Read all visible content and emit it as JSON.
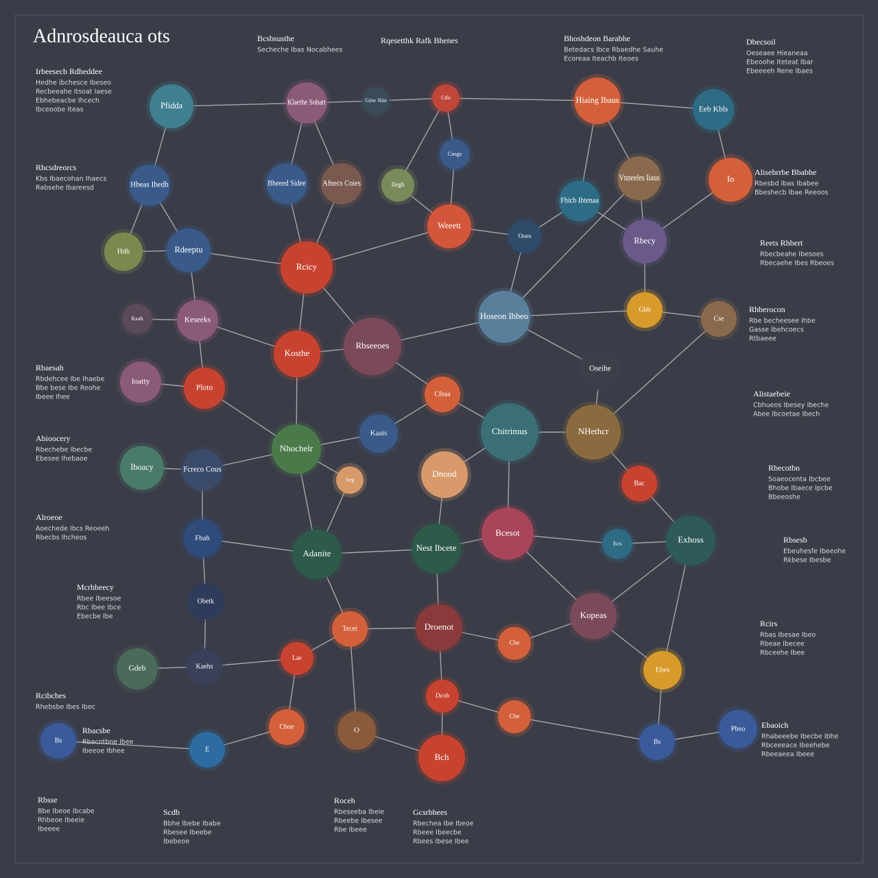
{
  "header": {
    "title": "Adnrosdeauca ots"
  },
  "nodes": [
    {
      "label": "Pfidda"
    },
    {
      "label": "Klaethe Sohatt"
    },
    {
      "label": "Gtiw Nite"
    },
    {
      "label": "Ctlo"
    },
    {
      "label": "Hiaing Ibaus"
    },
    {
      "label": "Eeb Kbls"
    },
    {
      "label": "Hbeas Ibedh"
    },
    {
      "label": "Bheeed Sidee"
    },
    {
      "label": "Afnecs Coies"
    },
    {
      "label": "Ilegh"
    },
    {
      "label": "Cnsgs"
    },
    {
      "label": "Fhicb Ibtenaa"
    },
    {
      "label": "Vnneeles Iiaus"
    },
    {
      "label": "Io"
    },
    {
      "label": "Hdh"
    },
    {
      "label": "Rdeeptu"
    },
    {
      "label": "Weeett"
    },
    {
      "label": "Ooes"
    },
    {
      "label": "Rbecy"
    },
    {
      "label": "Rcicy"
    },
    {
      "label": "Ksah"
    },
    {
      "label": "Keseeks"
    },
    {
      "label": "Kosthe"
    },
    {
      "label": "Rbseeoes"
    },
    {
      "label": "Hoseon Ihbeo"
    },
    {
      "label": "Gbb"
    },
    {
      "label": "Cse"
    },
    {
      "label": "Ioatty"
    },
    {
      "label": "Ploto"
    },
    {
      "label": "Cfeaa"
    },
    {
      "label": "Oseihe"
    },
    {
      "label": "Kaais"
    },
    {
      "label": "Cbitrimus"
    },
    {
      "label": "NHethcr"
    },
    {
      "label": "Nhochelr"
    },
    {
      "label": "Iboacy"
    },
    {
      "label": "Fcreco Cous"
    },
    {
      "label": "Dnood"
    },
    {
      "label": "Aep"
    },
    {
      "label": "Bac"
    },
    {
      "label": "Fbah"
    },
    {
      "label": "Adanite"
    },
    {
      "label": "Nest Ibcete"
    },
    {
      "label": "Bcesot"
    },
    {
      "label": "Exhoss"
    },
    {
      "label": "Ecs"
    },
    {
      "label": "Obetk"
    },
    {
      "label": "Droenot"
    },
    {
      "label": "Tecet"
    },
    {
      "label": "Kopeas"
    },
    {
      "label": "Cbe"
    },
    {
      "label": "Lae"
    },
    {
      "label": "Kaehs"
    },
    {
      "label": "Gdeb"
    },
    {
      "label": "Ebes"
    },
    {
      "label": "Dcob"
    },
    {
      "label": "Cboe"
    },
    {
      "label": "O"
    },
    {
      "label": "Cbe"
    },
    {
      "label": "E"
    },
    {
      "label": "Bch"
    },
    {
      "label": "Bs"
    },
    {
      "label": "Bs"
    },
    {
      "label": "Pbso"
    }
  ],
  "notes": [
    {
      "title": "Bcsbsusthe",
      "lines": [
        "Secheche Ibas Nocabhees"
      ]
    },
    {
      "title": "Rqesetthk Rafk Bhenes",
      "lines": []
    },
    {
      "title": "Bhoshdeon Barabhe",
      "lines": [
        "Betedacs Ibce Rbaedhe Sauhe",
        "Ecoreaa Iteachb Iteoes"
      ]
    },
    {
      "title": "Dbecsoil",
      "lines": [
        "Oeseaee Hieaneaa",
        "Ebeoohe Iteteat Ibar",
        "Ebeeeeh Rene Ibaes"
      ]
    },
    {
      "title": "Irbeesecb Rdheddee",
      "lines": [
        "Hedhe ibchesce Ibeseo",
        "Recbeeahe Itsoat Iaese",
        "Ebhebeacbe Ihcech",
        "Ibceoobe Iteas"
      ]
    },
    {
      "title": "Rhcsdreorcs",
      "lines": [
        "Kbs Ibaecohan Ihaecs",
        "Rabsehe Ibareesd"
      ]
    },
    {
      "title": "Alisehrrbe Bbabhe",
      "lines": [
        "Rbesbd Ibas Ibabee",
        "Bbeshecb Ibae Reeoos"
      ]
    },
    {
      "title": "Reets Rhbert",
      "lines": [
        "Rbecbeahe Ibesoes",
        "Rbecaehe Ibes Rbeoes"
      ]
    },
    {
      "title": "Rhberocon",
      "lines": [
        "Rbe becheesee Ihbe",
        "Gasse Ibehcoecs",
        "Rtbaeee"
      ]
    },
    {
      "title": "Rbaesah",
      "lines": [
        "Rbdehcee Ibe Ihaebe",
        "Bbe bese Ibe Reohe",
        "Ibeee Ihee"
      ]
    },
    {
      "title": "Alistaebeie",
      "lines": [
        "Cbhueos Ibesey Ibeche",
        "Abee Ibcoetae Ibech"
      ]
    },
    {
      "title": "Abioocery",
      "lines": [
        "Rbechebe Ibecbe",
        "Ebesee Ihebaoe"
      ]
    },
    {
      "title": "Rbecotbn",
      "lines": [
        "Soaeocenta Ibcbee",
        "Bhobe Ibaece Ipcbe",
        "Bbeeoshe"
      ]
    },
    {
      "title": "Alroeoe",
      "lines": [
        "Aoechede Ibcs Reoeeh",
        "Rbecbs Ihcheos"
      ]
    },
    {
      "title": "Rbsesb",
      "lines": [
        "Ebeuhesfe Ibeeohe",
        "Rkbese Ibesbe"
      ]
    },
    {
      "title": "Mcrhbeecy",
      "lines": [
        "Rbee Ibeesoe",
        "Rbc Ibee Ibce",
        "Ebecbe Ibe"
      ]
    },
    {
      "title": "Rcirs",
      "lines": [
        "Rbas Ibesae Ibeo",
        "Rbeae Ibecee",
        "Rbceehe Ibee"
      ]
    },
    {
      "title": "Rcibcbes",
      "lines": [
        "Rhebsbe Ibes Ibec"
      ]
    },
    {
      "title": "Rbacsbe",
      "lines": [
        "Rbacotbne Ibee",
        "Ibeeoe Ibhee"
      ]
    },
    {
      "title": "Ebaoich",
      "lines": [
        "Rhabeeebe Ibecbe Ibhe",
        "Rbceeeace Ibeehebe",
        "Rbeeaeea Ibeee"
      ]
    },
    {
      "title": "Rbsse",
      "lines": [
        "Bbe Ibeoe Ibcabe",
        "Rhbeoe Ibeeie",
        "Ibeeee"
      ]
    },
    {
      "title": "Scdb",
      "lines": [
        "Bbhe Ibebe Ibabe",
        "Rbesee Ibeebe",
        "Ibebeoe"
      ]
    },
    {
      "title": "Roceh",
      "lines": [
        "Rbeseeba Ibeie",
        "Rbeebe Ibesee",
        "Rbe Ibeee"
      ]
    },
    {
      "title": "Gcsrbhees",
      "lines": [
        "Rbechea Ibe Ibeoe",
        "Rbeee Ibeecbe",
        "Rbees Ibese Ibee"
      ]
    }
  ]
}
